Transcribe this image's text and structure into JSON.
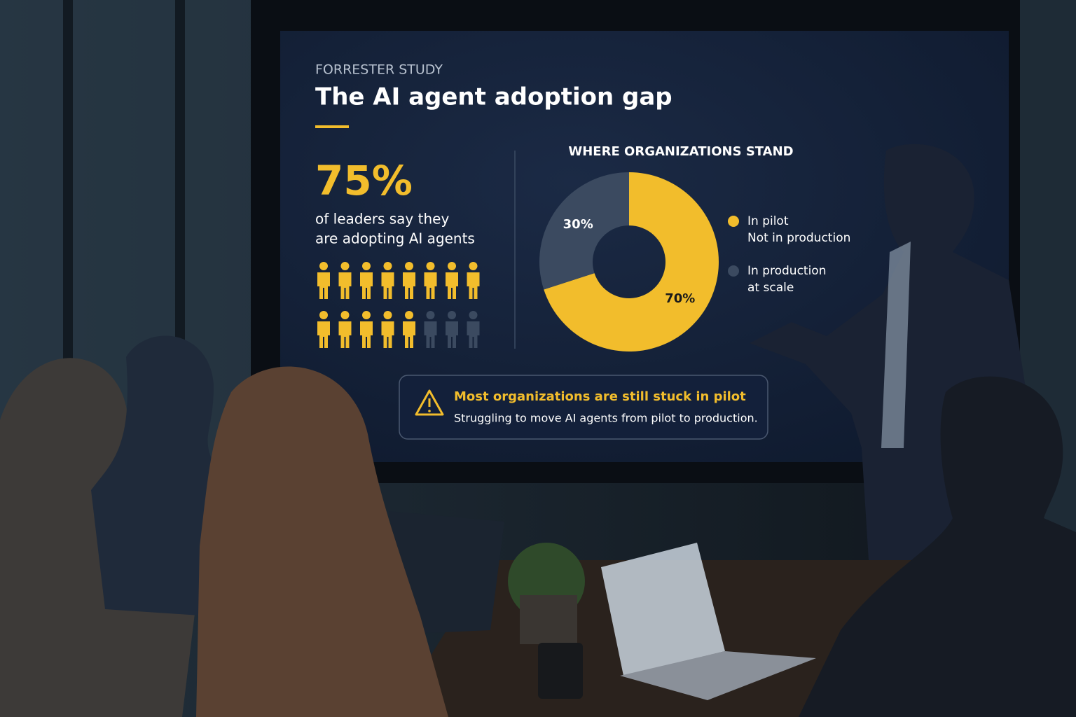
{
  "slide": {
    "kicker": "FORRESTER STUDY",
    "title": "The AI agent adoption gap",
    "stat": "75%",
    "stat_caption": [
      "of leaders say they",
      "are adopting AI agents"
    ]
  },
  "chart_data": {
    "type": "pie",
    "title": "WHERE ORGANIZATIONS STAND",
    "categories": [
      [
        "In pilot",
        "Not in production"
      ],
      [
        "In production",
        "at scale"
      ]
    ],
    "values": [
      70,
      30
    ],
    "value_labels": [
      "70%",
      "30%"
    ],
    "colors": [
      "#f2bd2c",
      "#3b4a60"
    ],
    "donut": true
  },
  "callout": {
    "title": "Most organizations are still stuck in pilot",
    "text": "Struggling to move AI agents from pilot to production."
  }
}
